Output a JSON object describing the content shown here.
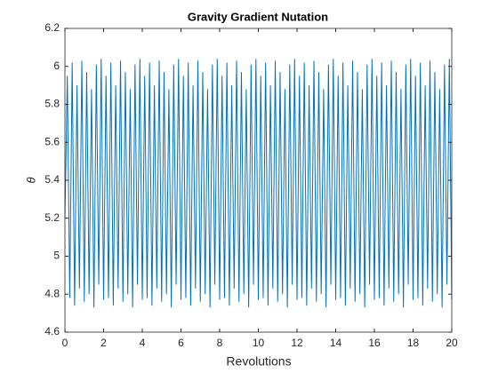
{
  "chart_data": {
    "type": "line",
    "title": "Gravity Gradient Nutation",
    "xlabel": "Revolutions",
    "ylabel": "θ",
    "xlim": [
      0,
      20
    ],
    "ylim": [
      4.6,
      6.2
    ],
    "xticks": [
      0,
      2,
      4,
      6,
      8,
      10,
      12,
      14,
      16,
      18,
      20
    ],
    "yticks": [
      4.6,
      4.8,
      5,
      5.2,
      5.4,
      5.6,
      5.8,
      6,
      6.2
    ],
    "series": [
      {
        "color": "#0072bd",
        "x": [
          0,
          0.125,
          0.25,
          0.375,
          0.5,
          0.625,
          0.75,
          0.875,
          1,
          1.125,
          1.25,
          1.375,
          1.5,
          1.625,
          1.75,
          1.875,
          2,
          2.125,
          2.25,
          2.375,
          2.5,
          2.625,
          2.75,
          2.875,
          3,
          3.125,
          3.25,
          3.375,
          3.5,
          3.625,
          3.75,
          3.875,
          4,
          4.125,
          4.25,
          4.375,
          4.5,
          4.625,
          4.75,
          4.875,
          5,
          5.125,
          5.25,
          5.375,
          5.5,
          5.625,
          5.75,
          5.875,
          6,
          6.125,
          6.25,
          6.375,
          6.5,
          6.625,
          6.75,
          6.875,
          7,
          7.125,
          7.25,
          7.375,
          7.5,
          7.625,
          7.75,
          7.875,
          8,
          8.125,
          8.25,
          8.375,
          8.5,
          8.625,
          8.75,
          8.875,
          9,
          9.125,
          9.25,
          9.375,
          9.5,
          9.625,
          9.75,
          9.875,
          10,
          10.125,
          10.25,
          10.375,
          10.5,
          10.625,
          10.75,
          10.875,
          11,
          11.125,
          11.25,
          11.375,
          11.5,
          11.625,
          11.75,
          11.875,
          12,
          12.125,
          12.25,
          12.375,
          12.5,
          12.625,
          12.75,
          12.875,
          13,
          13.125,
          13.25,
          13.375,
          13.5,
          13.625,
          13.75,
          13.875,
          14,
          14.125,
          14.25,
          14.375,
          14.5,
          14.625,
          14.75,
          14.875,
          15,
          15.125,
          15.25,
          15.375,
          15.5,
          15.625,
          15.75,
          15.875,
          16,
          16.125,
          16.25,
          16.375,
          16.5,
          16.625,
          16.75,
          16.875,
          17,
          17.125,
          17.25,
          17.375,
          17.5,
          17.625,
          17.75,
          17.875,
          18,
          18.125,
          18.25,
          18.375,
          18.5,
          18.625,
          18.75,
          18.875,
          19,
          19.125,
          19.25,
          19.375,
          19.5,
          19.625,
          19.75,
          19.875,
          20
        ],
        "values": [
          5.2,
          5.95,
          4.78,
          6.02,
          4.74,
          5.9,
          4.83,
          6.03,
          4.76,
          5.97,
          4.8,
          5.88,
          4.73,
          6.01,
          4.85,
          6.04,
          4.77,
          5.95,
          4.78,
          6.02,
          4.74,
          5.9,
          4.83,
          6.03,
          4.76,
          5.97,
          4.8,
          5.88,
          4.73,
          6.01,
          4.85,
          6.04,
          4.77,
          5.95,
          4.78,
          6.02,
          4.74,
          5.9,
          4.83,
          6.03,
          4.76,
          5.97,
          4.8,
          5.88,
          4.73,
          6.01,
          4.85,
          6.04,
          4.77,
          5.95,
          4.78,
          6.02,
          4.74,
          5.9,
          4.83,
          6.03,
          4.76,
          5.97,
          4.8,
          5.88,
          4.73,
          6.01,
          4.85,
          6.04,
          4.77,
          5.95,
          4.78,
          6.02,
          4.74,
          5.9,
          4.83,
          6.03,
          4.76,
          5.97,
          4.8,
          5.88,
          4.73,
          6.01,
          4.85,
          6.04,
          4.77,
          5.95,
          4.78,
          6.02,
          4.74,
          5.9,
          4.83,
          6.03,
          4.76,
          5.97,
          4.8,
          5.88,
          4.73,
          6.01,
          4.85,
          6.04,
          4.77,
          5.95,
          4.78,
          6.02,
          4.74,
          5.9,
          4.83,
          6.03,
          4.76,
          5.97,
          4.8,
          5.88,
          4.73,
          6.01,
          4.85,
          6.04,
          4.77,
          5.95,
          4.78,
          6.02,
          4.74,
          5.9,
          4.83,
          6.03,
          4.76,
          5.97,
          4.8,
          5.88,
          4.73,
          6.01,
          4.85,
          6.04,
          4.77,
          5.95,
          4.78,
          6.02,
          4.74,
          5.9,
          4.83,
          6.03,
          4.76,
          5.97,
          4.8,
          5.88,
          4.73,
          6.01,
          4.85,
          6.04,
          4.77,
          5.95,
          4.78,
          6.02,
          4.74,
          5.9,
          4.83,
          6.03,
          4.76,
          5.97,
          4.8,
          5.88,
          4.73,
          6.01,
          4.85,
          6.04,
          4.77
        ]
      }
    ]
  }
}
